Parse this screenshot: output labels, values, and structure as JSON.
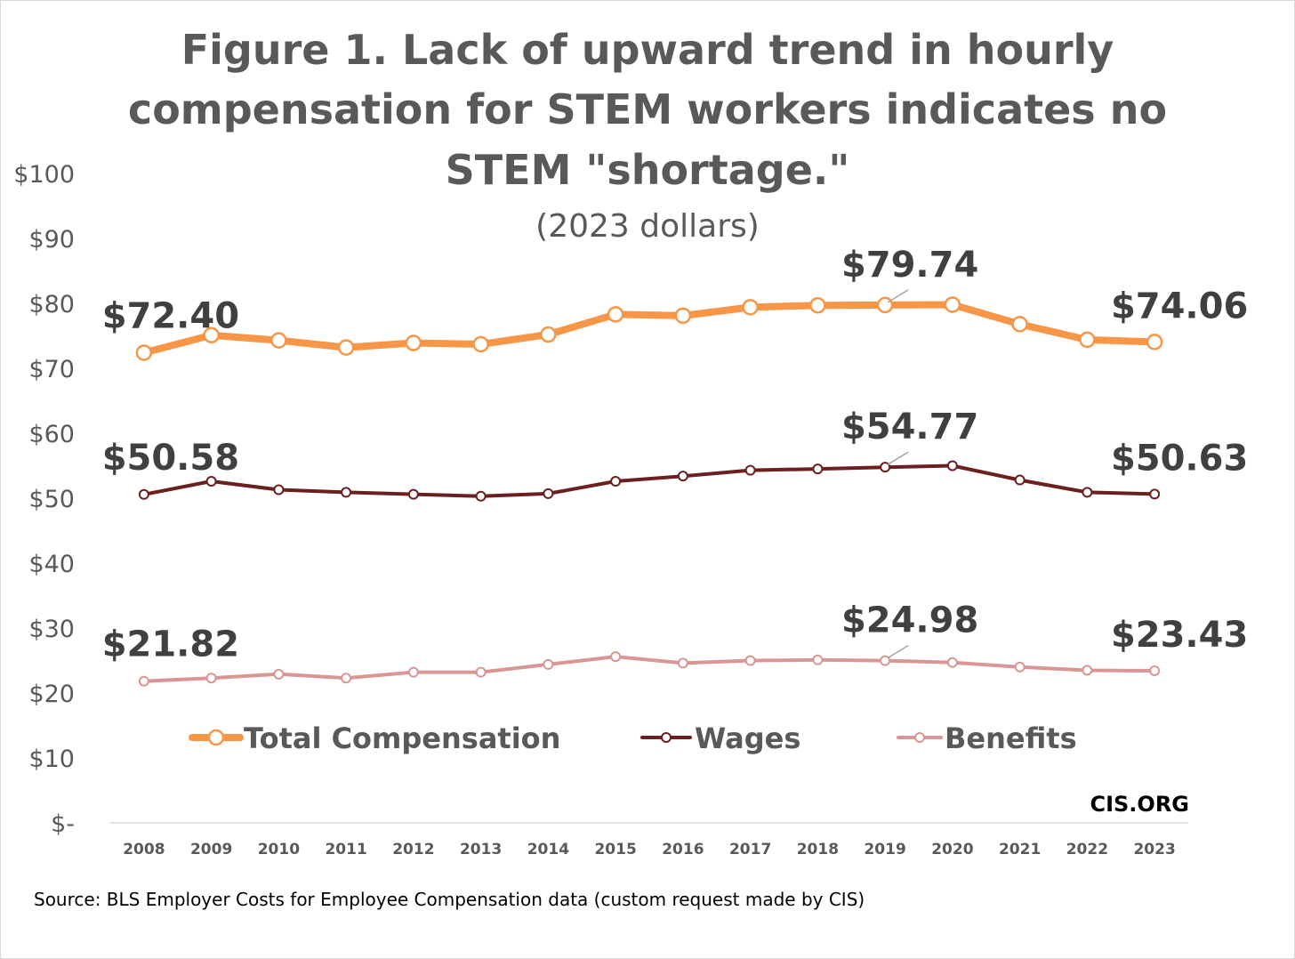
{
  "chart_data": {
    "type": "line",
    "title": "Figure 1. Lack of upward trend in hourly compensation for STEM workers indicates no STEM \"shortage.\"",
    "title_lines": [
      "Figure 1. Lack of upward trend in hourly",
      "compensation for STEM workers indicates no",
      "STEM \"shortage.\""
    ],
    "subtitle": "(2023 dollars)",
    "xlabel": "",
    "ylabel": "",
    "x": [
      "2008",
      "2009",
      "2010",
      "2011",
      "2012",
      "2013",
      "2014",
      "2015",
      "2016",
      "2017",
      "2018",
      "2019",
      "2020",
      "2021",
      "2022",
      "2023"
    ],
    "ylim": [
      0,
      100
    ],
    "yticks": [
      0,
      10,
      20,
      30,
      40,
      50,
      60,
      70,
      80,
      90,
      100
    ],
    "ytick_labels": [
      "$-",
      "$10",
      "$20",
      "$30",
      "$40",
      "$50",
      "$60",
      "$70",
      "$80",
      "$90",
      "$100"
    ],
    "grid": false,
    "legend_position": "inside-bottom",
    "series": [
      {
        "name": "Total Compensation",
        "color": "#f79646",
        "values": [
          72.4,
          75.1,
          74.3,
          73.2,
          73.9,
          73.7,
          75.2,
          78.3,
          78.1,
          79.4,
          79.7,
          79.74,
          79.8,
          76.8,
          74.4,
          74.06
        ]
      },
      {
        "name": "Wages",
        "color": "#6b1f1f",
        "values": [
          50.58,
          52.6,
          51.3,
          50.9,
          50.6,
          50.3,
          50.7,
          52.6,
          53.4,
          54.3,
          54.5,
          54.77,
          55.0,
          52.8,
          50.9,
          50.63
        ]
      },
      {
        "name": "Benefits",
        "color": "#d99694",
        "values": [
          21.82,
          22.3,
          22.9,
          22.3,
          23.2,
          23.2,
          24.4,
          25.6,
          24.6,
          25.0,
          25.1,
          24.98,
          24.7,
          24.0,
          23.5,
          23.43
        ]
      }
    ],
    "data_labels": [
      {
        "series": 0,
        "index": 0,
        "text": "$72.40"
      },
      {
        "series": 0,
        "index": 11,
        "text": "$79.74"
      },
      {
        "series": 0,
        "index": 15,
        "text": "$74.06"
      },
      {
        "series": 1,
        "index": 0,
        "text": "$50.58"
      },
      {
        "series": 1,
        "index": 11,
        "text": "$54.77"
      },
      {
        "series": 1,
        "index": 15,
        "text": "$50.63"
      },
      {
        "series": 2,
        "index": 0,
        "text": "$21.82"
      },
      {
        "series": 2,
        "index": 11,
        "text": "$24.98"
      },
      {
        "series": 2,
        "index": 15,
        "text": "$23.43"
      }
    ],
    "watermark": "CIS.ORG",
    "source": "Source: BLS Employer Costs for Employee Compensation data (custom request made by CIS)"
  }
}
